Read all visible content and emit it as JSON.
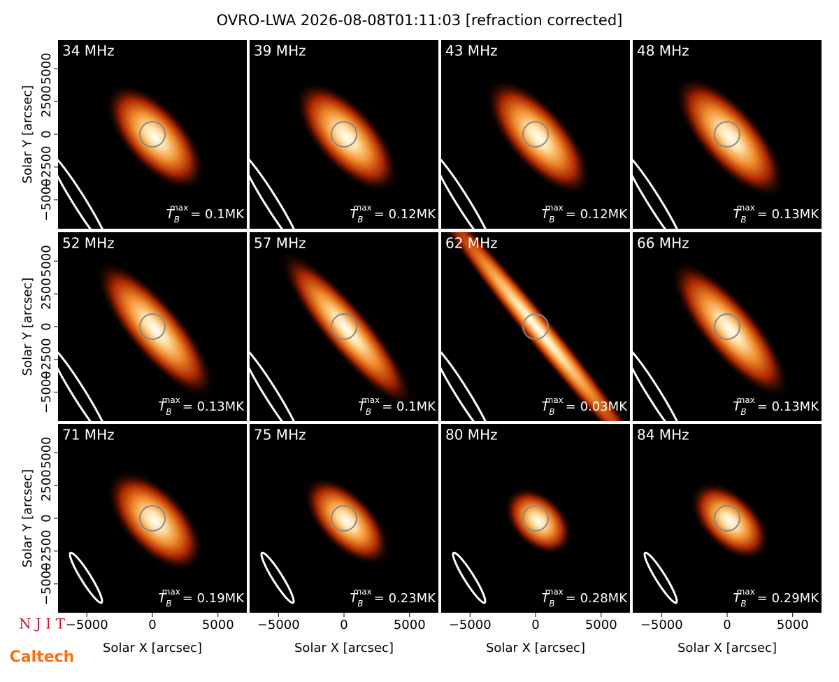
{
  "title": "OVRO-LWA 2026-08-08T01:11:03 [refraction corrected]",
  "logos": [
    "N J I T",
    "Caltech"
  ],
  "chart_data": [
    {
      "type": "image",
      "title": "34 MHz",
      "tb": {
        "symbol": "T",
        "sub": "B",
        "sup": "max",
        "text": "= 0.1MK"
      },
      "xlim": [
        -7200,
        7200
      ],
      "ylim": [
        -7200,
        7200
      ],
      "ylabel": "Solar Y [arcsec]",
      "yticks": [
        {
          "value": -5000,
          "label": "−5000"
        },
        {
          "value": -2500,
          "label": "−2500"
        },
        0,
        2500,
        5000
      ]
    },
    {
      "type": "image",
      "title": "39 MHz",
      "tb": {
        "symbol": "T",
        "sub": "B",
        "sup": "max",
        "text": "= 0.12MK"
      },
      "xlim": [
        -7200,
        7200
      ],
      "ylim": [
        -7200,
        7200
      ]
    },
    {
      "type": "image",
      "title": "43 MHz",
      "tb": {
        "symbol": "T",
        "sub": "B",
        "sup": "max",
        "text": "= 0.12MK"
      },
      "xlim": [
        -7200,
        7200
      ],
      "ylim": [
        -7200,
        7200
      ]
    },
    {
      "type": "image",
      "title": "48 MHz",
      "tb": {
        "symbol": "T",
        "sub": "B",
        "sup": "max",
        "text": "= 0.13MK"
      },
      "xlim": [
        -7200,
        7200
      ],
      "ylim": [
        -7200,
        7200
      ]
    },
    {
      "type": "image",
      "title": "52 MHz",
      "tb": {
        "symbol": "T",
        "sub": "B",
        "sup": "max",
        "text": "= 0.13MK"
      },
      "xlim": [
        -7200,
        7200
      ],
      "ylim": [
        -7200,
        7200
      ],
      "ylabel": "Solar Y [arcsec]",
      "yticks": [
        {
          "value": -5000,
          "label": "−5000"
        },
        {
          "value": -2500,
          "label": "−2500"
        },
        0,
        2500,
        5000
      ]
    },
    {
      "type": "image",
      "title": "57 MHz",
      "tb": {
        "symbol": "T",
        "sub": "B",
        "sup": "max",
        "text": "= 0.1MK"
      },
      "xlim": [
        -7200,
        7200
      ],
      "ylim": [
        -7200,
        7200
      ]
    },
    {
      "type": "image",
      "title": "62 MHz",
      "tb": {
        "symbol": "T",
        "sub": "B",
        "sup": "max",
        "text": "= 0.03MK"
      },
      "xlim": [
        -7200,
        7200
      ],
      "ylim": [
        -7200,
        7200
      ]
    },
    {
      "type": "image",
      "title": "66 MHz",
      "tb": {
        "symbol": "T",
        "sub": "B",
        "sup": "max",
        "text": "= 0.13MK"
      },
      "xlim": [
        -7200,
        7200
      ],
      "ylim": [
        -7200,
        7200
      ]
    },
    {
      "type": "image",
      "title": "71 MHz",
      "tb": {
        "symbol": "T",
        "sub": "B",
        "sup": "max",
        "text": "= 0.19MK"
      },
      "xlim": [
        -7200,
        7200
      ],
      "ylim": [
        -7200,
        7200
      ],
      "ylabel": "Solar Y [arcsec]",
      "yticks": [
        {
          "value": -5000,
          "label": "−5000"
        },
        {
          "value": -2500,
          "label": "−2500"
        },
        0,
        2500,
        5000
      ],
      "xlabel": "Solar X [arcsec]",
      "xticks": [
        {
          "value": -5000,
          "label": "−5000"
        },
        0,
        5000
      ]
    },
    {
      "type": "image",
      "title": "75 MHz",
      "tb": {
        "symbol": "T",
        "sub": "B",
        "sup": "max",
        "text": "= 0.23MK"
      },
      "xlim": [
        -7200,
        7200
      ],
      "ylim": [
        -7200,
        7200
      ],
      "xlabel": "Solar X [arcsec]",
      "xticks": [
        {
          "value": -5000,
          "label": "−5000"
        },
        0,
        5000
      ]
    },
    {
      "type": "image",
      "title": "80 MHz",
      "tb": {
        "symbol": "T",
        "sub": "B",
        "sup": "max",
        "text": "= 0.28MK"
      },
      "xlim": [
        -7200,
        7200
      ],
      "ylim": [
        -7200,
        7200
      ],
      "xlabel": "Solar X [arcsec]",
      "xticks": [
        {
          "value": -5000,
          "label": "−5000"
        },
        0,
        5000
      ]
    },
    {
      "type": "image",
      "title": "84 MHz",
      "tb": {
        "symbol": "T",
        "sub": "B",
        "sup": "max",
        "text": "= 0.29MK"
      },
      "xlim": [
        -7200,
        7200
      ],
      "ylim": [
        -7200,
        7200
      ],
      "xlabel": "Solar X [arcsec]",
      "xticks": [
        {
          "value": -5000,
          "label": "−5000"
        },
        0,
        5000
      ]
    }
  ]
}
